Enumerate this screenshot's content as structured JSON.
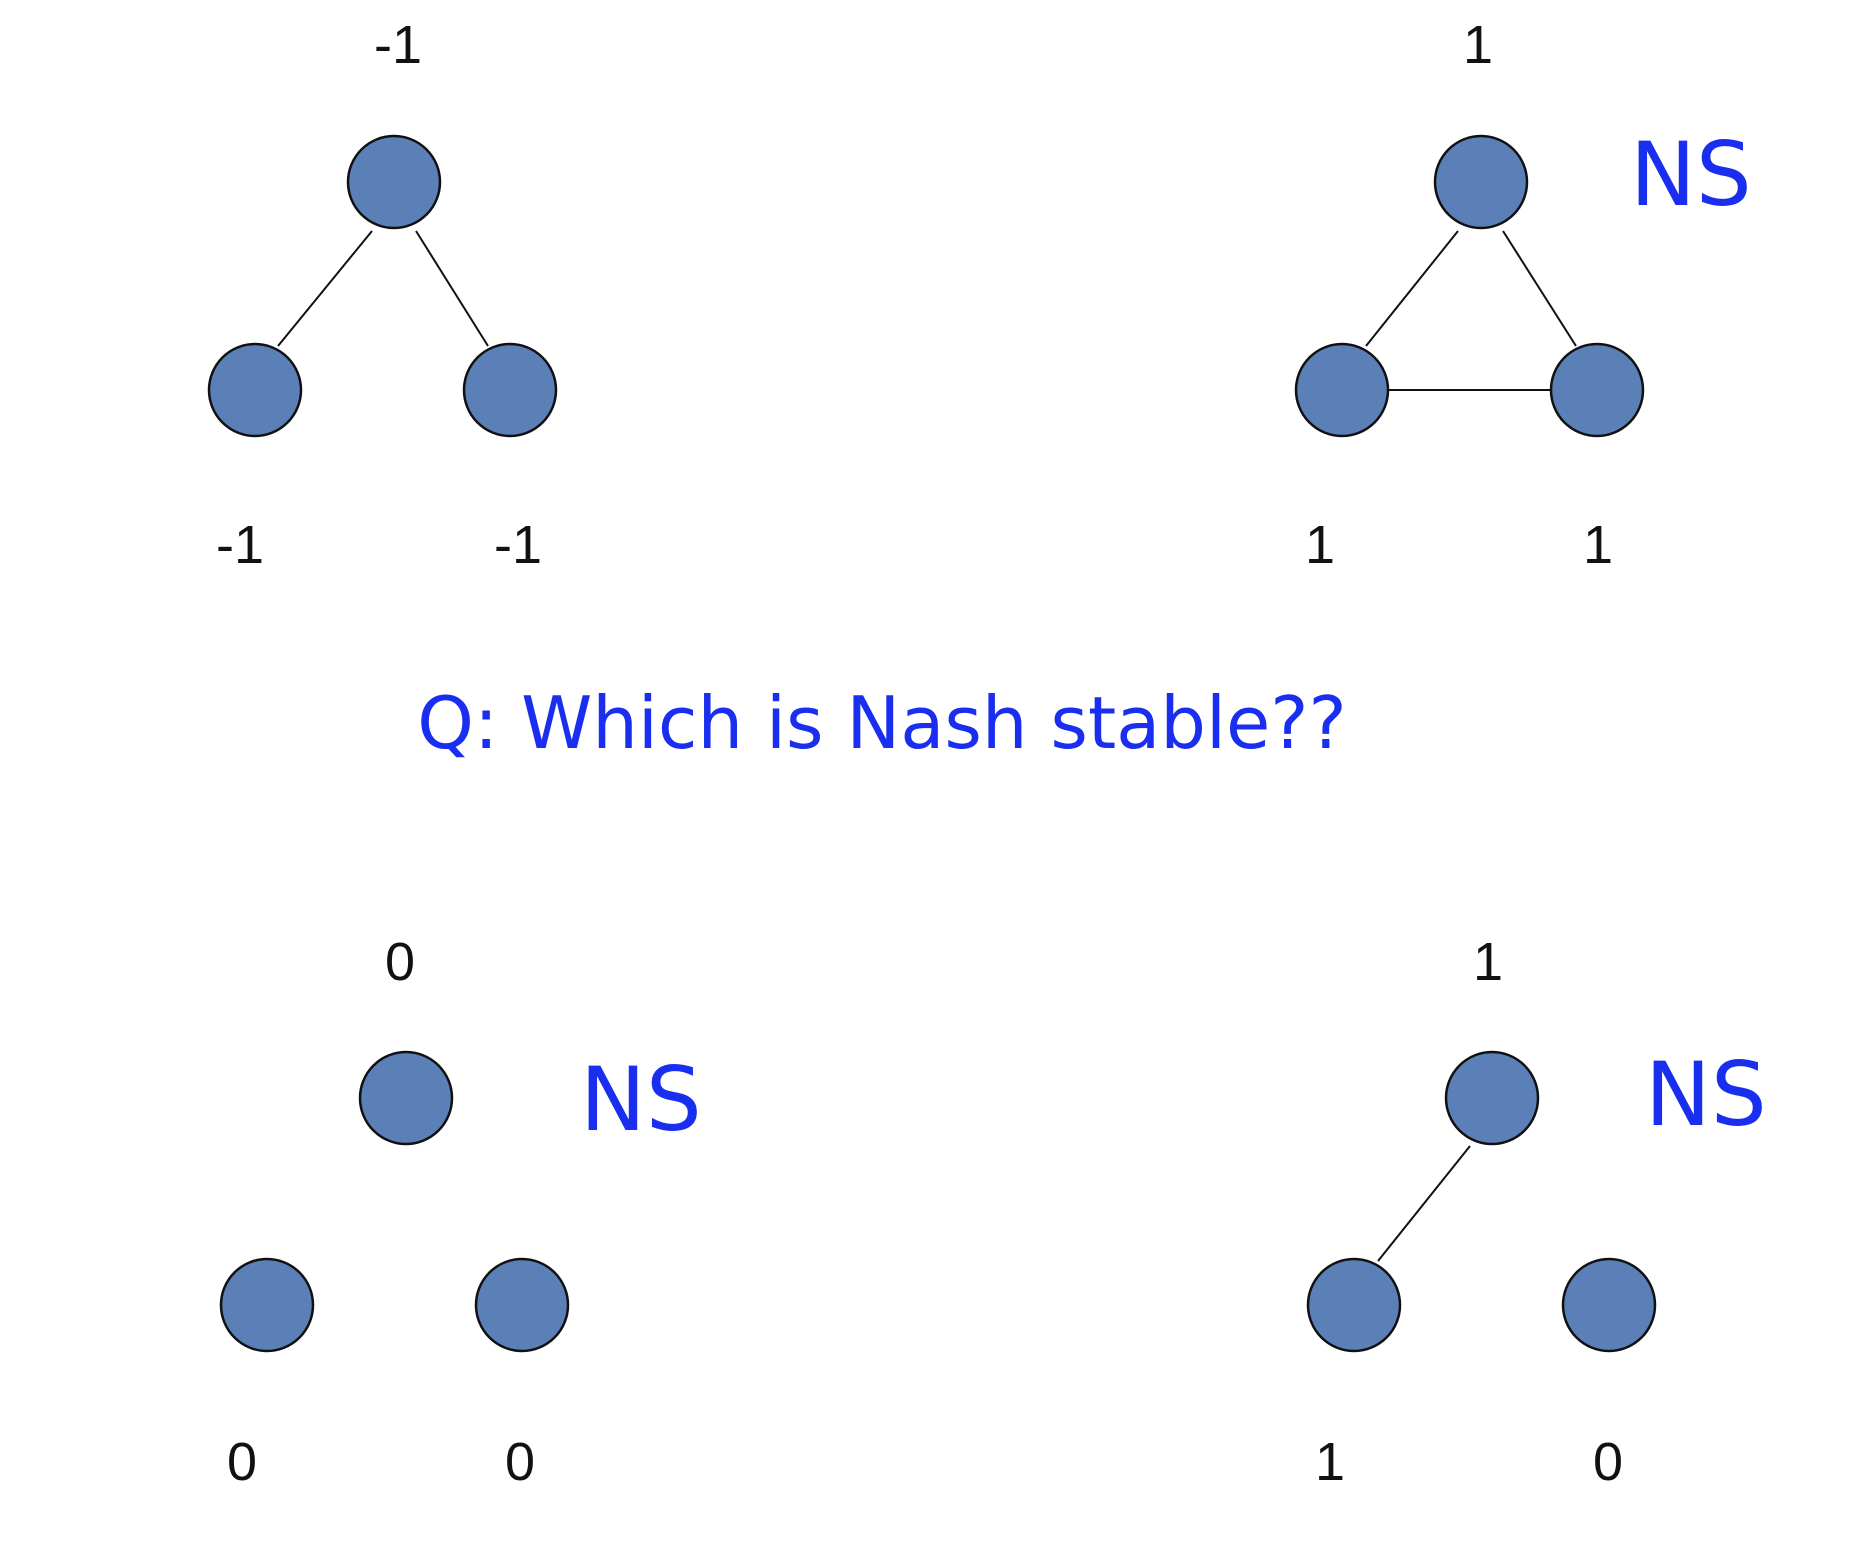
{
  "question": "Q: Which is Nash stable??",
  "node_color": "#5b80b7",
  "label_color": "#1a2ef0",
  "graphs": [
    {
      "payoffs": {
        "top": "-1",
        "left": "-1",
        "right": "-1"
      },
      "edges": [
        "top-left",
        "top-right"
      ],
      "ns_label": ""
    },
    {
      "payoffs": {
        "top": "1",
        "left": "1",
        "right": "1"
      },
      "edges": [
        "top-left",
        "top-right",
        "left-right"
      ],
      "ns_label": "NS"
    },
    {
      "payoffs": {
        "top": "0",
        "left": "0",
        "right": "0"
      },
      "edges": [],
      "ns_label": "NS"
    },
    {
      "payoffs": {
        "top": "1",
        "left": "1",
        "right": "0"
      },
      "edges": [
        "top-left"
      ],
      "ns_label": "NS"
    }
  ]
}
